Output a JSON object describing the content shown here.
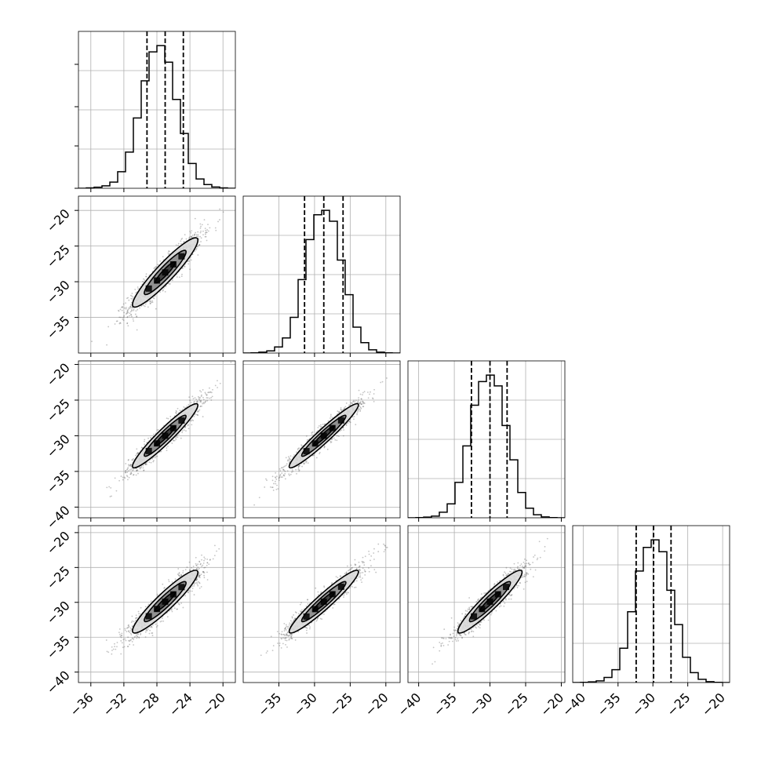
{
  "chart_data": {
    "type": "corner",
    "n_params": 4,
    "grid": true,
    "colors": {
      "line": "#000000",
      "points": "#555555",
      "grid": "#b0b0b0",
      "contour_fill_light": "#dcdcdc",
      "contour_fill_mid": "#8a8a8a",
      "contour_fill_dark": "#3a3a3a"
    },
    "params": [
      {
        "range": [
          -37.5,
          -18.5
        ],
        "ticks": [
          -36,
          -32,
          -28,
          -24,
          -20
        ],
        "tick_labels": [
          "−36",
          "−32",
          "−28",
          "−24",
          "−20"
        ],
        "quantiles": [
          -29.2,
          -27.0,
          -24.8
        ],
        "hist_edges": [
          -37.5,
          -36.55,
          -35.6,
          -34.65,
          -33.7,
          -32.75,
          -31.8,
          -30.85,
          -29.9,
          -28.95,
          -28.0,
          -27.05,
          -26.1,
          -25.15,
          -24.2,
          -23.25,
          -22.3,
          -21.35,
          -20.4,
          -19.45,
          -18.5
        ],
        "hist_counts": [
          0,
          2,
          5,
          12,
          30,
          80,
          175,
          340,
          520,
          660,
          690,
          610,
          430,
          265,
          120,
          45,
          18,
          6,
          2,
          0
        ]
      },
      {
        "range": [
          -40,
          -18
        ],
        "ticks": [
          -35,
          -30,
          -25,
          -20
        ],
        "tick_labels": [
          "−35",
          "−30",
          "−25",
          "−20"
        ],
        "quantiles": [
          -31.4,
          -28.7,
          -26.0
        ],
        "hist_edges": [
          -40,
          -38.9,
          -37.8,
          -36.7,
          -35.6,
          -34.5,
          -33.4,
          -32.3,
          -31.2,
          -30.1,
          -29.0,
          -27.9,
          -26.8,
          -25.7,
          -24.6,
          -23.5,
          -22.4,
          -21.3,
          -20.2,
          -19.1,
          -18.0
        ],
        "hist_counts": [
          0,
          1,
          4,
          10,
          28,
          70,
          165,
          340,
          525,
          640,
          660,
          610,
          430,
          270,
          120,
          48,
          15,
          4,
          1,
          0
        ]
      },
      {
        "range": [
          -41.5,
          -19.5
        ],
        "ticks": [
          -40,
          -35,
          -30,
          -25,
          -20
        ],
        "tick_labels": [
          "−40",
          "−35",
          "−30",
          "−25",
          "−20"
        ],
        "quantiles": [
          -32.6,
          -30.0,
          -27.6
        ],
        "hist_edges": [
          -41.5,
          -40.4,
          -39.3,
          -38.2,
          -37.1,
          -36.0,
          -34.9,
          -33.8,
          -32.7,
          -31.6,
          -30.5,
          -29.4,
          -28.3,
          -27.2,
          -26.1,
          -25.0,
          -23.9,
          -22.8,
          -21.7,
          -20.6,
          -19.5
        ],
        "hist_counts": [
          0,
          1,
          3,
          8,
          26,
          65,
          165,
          335,
          525,
          635,
          665,
          615,
          430,
          270,
          118,
          45,
          14,
          4,
          1,
          0
        ]
      },
      {
        "range": [
          -41.5,
          -19.0
        ],
        "ticks": [
          -40,
          -35,
          -30,
          -25,
          -20
        ],
        "tick_labels": [
          "−40",
          "−35",
          "−30",
          "−25",
          "−20"
        ],
        "quantiles": [
          -32.4,
          -29.9,
          -27.4
        ],
        "hist_edges": [
          -41.5,
          -40.375,
          -39.25,
          -38.125,
          -37.0,
          -35.875,
          -34.75,
          -33.625,
          -32.5,
          -31.375,
          -30.25,
          -29.125,
          -28.0,
          -26.875,
          -25.75,
          -24.625,
          -23.5,
          -22.375,
          -21.25,
          -20.125,
          -19.0
        ],
        "hist_counts": [
          0,
          1,
          3,
          8,
          24,
          60,
          160,
          330,
          520,
          630,
          665,
          610,
          430,
          270,
          118,
          46,
          15,
          4,
          1,
          0
        ]
      }
    ],
    "row_ticks": [
      [],
      [
        -20,
        -25,
        -30,
        -35
      ],
      [
        -20,
        -25,
        -30,
        -35,
        -40
      ],
      [
        -20,
        -25,
        -30,
        -35,
        -40
      ]
    ],
    "row_tick_labels": [
      [],
      [
        "−20",
        "−25",
        "−30",
        "−35"
      ],
      [
        "−20",
        "−25",
        "−30",
        "−35",
        "−40"
      ],
      [
        "−20",
        "−25",
        "−30",
        "−35",
        "−40"
      ]
    ],
    "pairs": [
      {
        "row": 1,
        "col": 0,
        "mean": [
          -27.0,
          -28.7
        ],
        "sd": [
          2.2,
          2.7
        ],
        "rho": 0.93
      },
      {
        "row": 2,
        "col": 0,
        "mean": [
          -27.0,
          -30.0
        ],
        "sd": [
          2.2,
          2.5
        ],
        "rho": 0.95
      },
      {
        "row": 2,
        "col": 1,
        "mean": [
          -28.7,
          -30.0
        ],
        "sd": [
          2.7,
          2.5
        ],
        "rho": 0.96
      },
      {
        "row": 3,
        "col": 0,
        "mean": [
          -27.0,
          -29.9
        ],
        "sd": [
          2.2,
          2.5
        ],
        "rho": 0.93
      },
      {
        "row": 3,
        "col": 1,
        "mean": [
          -28.7,
          -29.9
        ],
        "sd": [
          2.7,
          2.5
        ],
        "rho": 0.95
      },
      {
        "row": 3,
        "col": 2,
        "mean": [
          -30.0,
          -29.9
        ],
        "sd": [
          2.5,
          2.5
        ],
        "rho": 0.94
      }
    ]
  }
}
